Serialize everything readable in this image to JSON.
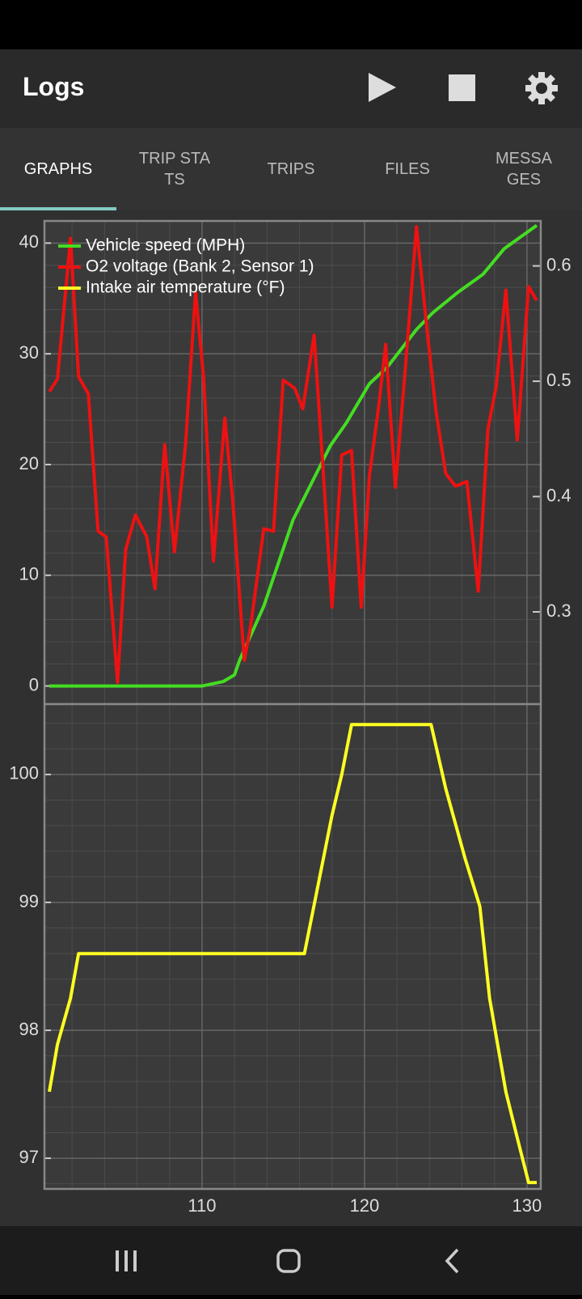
{
  "header": {
    "title": "Logs"
  },
  "tabs": [
    "GRAPHS",
    "TRIP STATS",
    "TRIPS",
    "FILES",
    "MESSAGES"
  ],
  "chart_data": [
    {
      "type": "line",
      "xlim": [
        100.3,
        130.85
      ],
      "ylim": [
        -1.64,
        42.0
      ],
      "yticks": [
        0,
        10,
        20,
        30,
        40
      ],
      "y2lim": [
        0.22,
        0.639
      ],
      "y2ticks": [
        0.3,
        0.4,
        0.5,
        0.6
      ],
      "grid": true,
      "series": [
        {
          "name": "Vehicle speed (MPH)",
          "color": "#44dd22",
          "x": [
            100.6,
            110.0,
            111.3,
            112.0,
            112.3,
            113.8,
            115.6,
            117.9,
            118.9,
            120.3,
            121.4,
            123.2,
            124.2,
            125.7,
            127.3,
            128.6,
            130.6
          ],
          "values": [
            0,
            0,
            0.4,
            1.0,
            2.3,
            7.2,
            15,
            21.7,
            23.8,
            27.3,
            28.8,
            32.2,
            33.7,
            35.5,
            37.2,
            39.5,
            41.6
          ]
        },
        {
          "name": "O2 voltage (Bank 2, Sensor 1)",
          "color": "#ee1111",
          "axis": "y2",
          "x": [
            100.6,
            101.1,
            101.9,
            102.4,
            103.0,
            103.6,
            104.1,
            104.8,
            105.3,
            105.9,
            106.6,
            107.1,
            107.7,
            108.3,
            108.98,
            109.6,
            110.1,
            110.7,
            111.4,
            111.9,
            112.6,
            113.0,
            113.8,
            114.4,
            115.0,
            115.7,
            116.2,
            116.9,
            117.4,
            118.0,
            118.6,
            119.2,
            119.8,
            120.3,
            120.9,
            121.3,
            121.9,
            122.5,
            123.2,
            123.9,
            124.4,
            125.0,
            125.6,
            126.3,
            127.0,
            127.6,
            128.1,
            128.7,
            129.4,
            130.1,
            130.6
          ],
          "values": [
            0.491,
            0.502,
            0.624,
            0.504,
            0.489,
            0.37,
            0.365,
            0.239,
            0.354,
            0.384,
            0.365,
            0.32,
            0.445,
            0.352,
            0.445,
            0.577,
            0.502,
            0.344,
            0.468,
            0.395,
            0.258,
            0.288,
            0.372,
            0.37,
            0.501,
            0.494,
            0.476,
            0.54,
            0.434,
            0.304,
            0.436,
            0.44,
            0.304,
            0.418,
            0.481,
            0.532,
            0.408,
            0.509,
            0.634,
            0.538,
            0.474,
            0.42,
            0.409,
            0.413,
            0.318,
            0.459,
            0.495,
            0.579,
            0.449,
            0.582,
            0.57
          ]
        }
      ]
    },
    {
      "type": "line",
      "xlim": [
        100.3,
        130.85
      ],
      "xticks": [
        110,
        120,
        130
      ],
      "ylim": [
        96.76,
        100.55
      ],
      "yticks": [
        97,
        98,
        99,
        100
      ],
      "grid": true,
      "series": [
        {
          "name": "Intake air temperature (°F)",
          "color": "#ffff22",
          "x": [
            100.6,
            101.1,
            101.9,
            102.4,
            116.3,
            118.0,
            118.6,
            119.2,
            124.1,
            125.0,
            126.2,
            127.1,
            127.7,
            128.7,
            129.4,
            130.1,
            130.6
          ],
          "values": [
            97.52,
            97.89,
            98.25,
            98.6,
            98.6,
            99.68,
            100.0,
            100.39,
            100.39,
            99.89,
            99.34,
            98.97,
            98.25,
            97.52,
            97.16,
            96.81,
            96.81
          ]
        }
      ]
    }
  ]
}
